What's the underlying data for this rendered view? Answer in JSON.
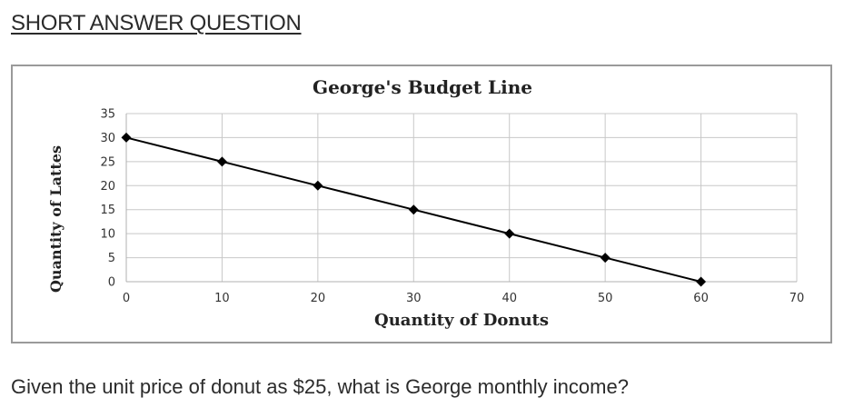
{
  "heading": "SHORT ANSWER QUESTION",
  "question": "Given the unit price of donut as $25, what is George monthly income?",
  "chart_data": {
    "type": "line",
    "title": "George's Budget Line",
    "xlabel": "Quantity of Donuts",
    "ylabel": "Quantity of Lattes",
    "x": [
      0,
      10,
      20,
      30,
      40,
      50,
      60
    ],
    "series": [
      {
        "values": [
          30,
          25,
          20,
          15,
          10,
          5,
          0
        ]
      }
    ],
    "xlim": [
      0,
      70
    ],
    "ylim": [
      0,
      35
    ],
    "xticks": [
      "0",
      "10",
      "20",
      "30",
      "40",
      "50",
      "60",
      "70"
    ],
    "yticks": [
      "0",
      "5",
      "10",
      "15",
      "20",
      "25",
      "30",
      "35"
    ],
    "grid": true,
    "marker": "diamond",
    "line_color": "#000000",
    "grid_color": "#c8c8c8"
  }
}
